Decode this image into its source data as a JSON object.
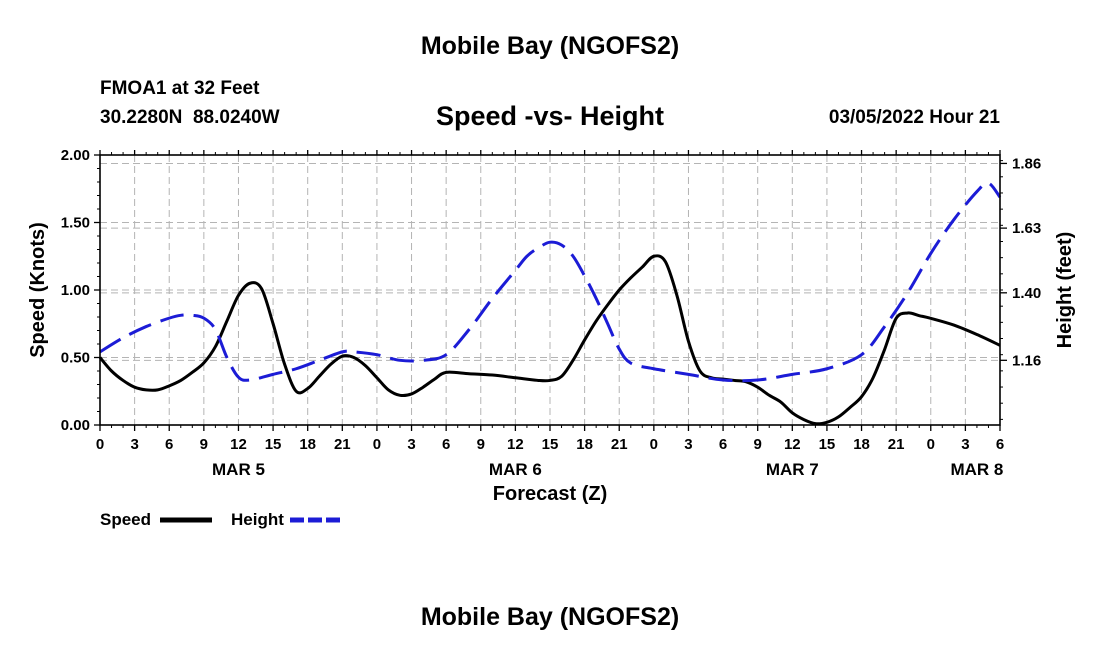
{
  "page": {
    "title": "Mobile Bay (NGOFS2)",
    "footer_title": "Mobile Bay (NGOFS2)",
    "station": "FMOA1 at 32 Feet",
    "coordinates": "30.2280N  88.0240W",
    "subtitle": "Speed -vs- Height",
    "timestamp": "03/05/2022 Hour 21"
  },
  "chart_data": {
    "type": "line",
    "title": "Speed -vs- Height",
    "xlabel": "Forecast (Z)",
    "ylabel": "Speed (Knots)",
    "y2label": "Height (feet)",
    "x_range_hours": [
      0,
      78
    ],
    "xticks": [
      0,
      3,
      6,
      9,
      12,
      15,
      18,
      21,
      24,
      27,
      30,
      33,
      36,
      39,
      42,
      45,
      48,
      51,
      54,
      57,
      60,
      63,
      66,
      69,
      72,
      75,
      78
    ],
    "xtick_labels": [
      "0",
      "3",
      "6",
      "9",
      "12",
      "15",
      "18",
      "21",
      "0",
      "3",
      "6",
      "9",
      "12",
      "15",
      "18",
      "21",
      "0",
      "3",
      "6",
      "9",
      "12",
      "15",
      "18",
      "21",
      "0",
      "3",
      "6"
    ],
    "date_labels": [
      {
        "hour": 12,
        "label": "MAR 5"
      },
      {
        "hour": 36,
        "label": "MAR 6"
      },
      {
        "hour": 60,
        "label": "MAR 7"
      },
      {
        "hour": 76,
        "label": "MAR 8"
      }
    ],
    "ylim": [
      0,
      2.0
    ],
    "yticks": [
      0,
      0.5,
      1.0,
      1.5,
      2.0
    ],
    "ytick_labels": [
      "0.00",
      "0.50",
      "1.00",
      "1.50",
      "2.00"
    ],
    "y2lim": [
      0.93,
      1.89
    ],
    "y2ticks": [
      1.16,
      1.4,
      1.63,
      1.86
    ],
    "y2tick_labels": [
      "1.16",
      "1.40",
      "1.63",
      "1.86"
    ],
    "grid": true,
    "legend_position": "bottom-left",
    "series": [
      {
        "name": "Speed",
        "axis": "left",
        "color": "#000000",
        "dash": "solid",
        "x": [
          0,
          1,
          2,
          3,
          4,
          5,
          6,
          7,
          8,
          9,
          10,
          11,
          12,
          13,
          14,
          15,
          16,
          17,
          18,
          19,
          20,
          21,
          22,
          23,
          24,
          25,
          26,
          27,
          28,
          29,
          30,
          32,
          34,
          36,
          38,
          39,
          40,
          41,
          42,
          43,
          44,
          45,
          46,
          47,
          48,
          49,
          50,
          51,
          52,
          53,
          54,
          55,
          56,
          57,
          58,
          59,
          60,
          61,
          62,
          63,
          64,
          65,
          66,
          67,
          68,
          69,
          70,
          71,
          72,
          74,
          76,
          78
        ],
        "y": [
          0.5,
          0.4,
          0.33,
          0.28,
          0.26,
          0.26,
          0.29,
          0.33,
          0.39,
          0.46,
          0.58,
          0.77,
          0.96,
          1.05,
          1.01,
          0.75,
          0.45,
          0.25,
          0.27,
          0.36,
          0.45,
          0.51,
          0.5,
          0.44,
          0.35,
          0.26,
          0.22,
          0.23,
          0.28,
          0.34,
          0.39,
          0.38,
          0.37,
          0.35,
          0.33,
          0.33,
          0.36,
          0.48,
          0.63,
          0.77,
          0.89,
          1.0,
          1.09,
          1.17,
          1.25,
          1.21,
          0.96,
          0.62,
          0.4,
          0.35,
          0.34,
          0.33,
          0.32,
          0.28,
          0.22,
          0.17,
          0.09,
          0.04,
          0.01,
          0.02,
          0.06,
          0.13,
          0.21,
          0.35,
          0.56,
          0.79,
          0.83,
          0.81,
          0.79,
          0.74,
          0.67,
          0.59
        ]
      },
      {
        "name": "Height",
        "axis": "right",
        "color": "#1c1cd6",
        "dash": "long-dash",
        "x": [
          0,
          2,
          4,
          6,
          7,
          8,
          9,
          10,
          11,
          12,
          13,
          15,
          17,
          19,
          21,
          22,
          24,
          26,
          28,
          30,
          32,
          34,
          36,
          37,
          38,
          39,
          40,
          41,
          42,
          43,
          44,
          45,
          46,
          48,
          51,
          54,
          57,
          60,
          63,
          66,
          68,
          70,
          72,
          74,
          76,
          77,
          78
        ],
        "y": [
          1.19,
          1.24,
          1.28,
          1.31,
          1.32,
          1.32,
          1.31,
          1.27,
          1.17,
          1.1,
          1.09,
          1.11,
          1.13,
          1.16,
          1.19,
          1.19,
          1.18,
          1.16,
          1.16,
          1.18,
          1.27,
          1.38,
          1.48,
          1.53,
          1.56,
          1.58,
          1.57,
          1.53,
          1.46,
          1.38,
          1.29,
          1.2,
          1.15,
          1.13,
          1.11,
          1.09,
          1.09,
          1.11,
          1.13,
          1.18,
          1.28,
          1.4,
          1.54,
          1.66,
          1.76,
          1.79,
          1.74
        ]
      }
    ]
  }
}
